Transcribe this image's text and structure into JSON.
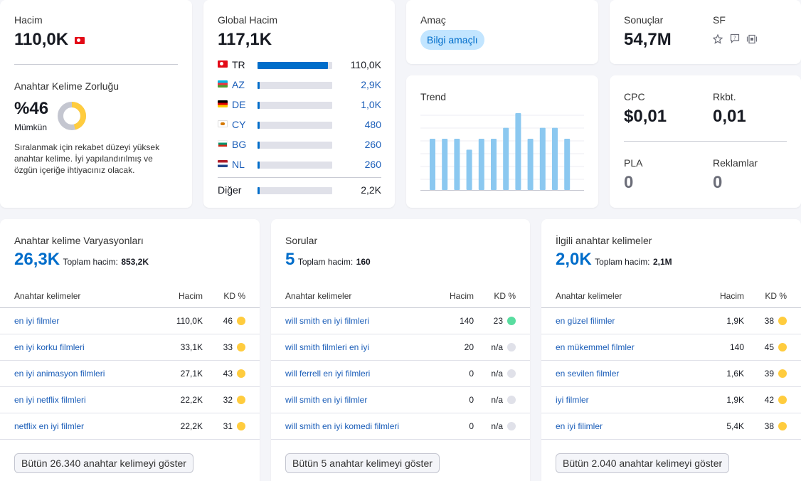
{
  "volume": {
    "label": "Hacim",
    "value": "110,0K",
    "difficulty_label": "Anahtar Kelime Zorluğu",
    "difficulty_value": "%46",
    "difficulty_text": "Mümkün",
    "difficulty_percent": 46,
    "difficulty_desc": "Sıralanmak için rekabet düzeyi yüksek anahtar kelime. İyi yapılandırılmış ve özgün içeriğe ihtiyacınız olacak.",
    "color": "#ffcc3e"
  },
  "global": {
    "label": "Global Hacim",
    "value": "117,1K",
    "countries": [
      {
        "code": "TR",
        "flag": "tr",
        "value": "110,0K",
        "share": 0.94
      },
      {
        "code": "AZ",
        "flag": "az",
        "value": "2,9K",
        "share": 0.025
      },
      {
        "code": "DE",
        "flag": "de",
        "value": "1,0K",
        "share": 0.02
      },
      {
        "code": "CY",
        "flag": "cy",
        "value": "480",
        "share": 0.02
      },
      {
        "code": "BG",
        "flag": "bg",
        "value": "260",
        "share": 0.02
      },
      {
        "code": "NL",
        "flag": "nl",
        "value": "260",
        "share": 0.02
      }
    ],
    "other": {
      "label": "Diğer",
      "value": "2,2K",
      "share": 0.025
    }
  },
  "intent": {
    "label": "Amaç",
    "badge": "Bilgi amaçlı"
  },
  "results": {
    "label": "Sonuçlar",
    "value": "54,7M",
    "sf_label": "SF"
  },
  "trend": {
    "label": "Trend",
    "values": [
      7,
      7,
      7,
      5.5,
      7,
      7,
      8.5,
      10.5,
      7,
      8.5,
      8.5,
      7
    ],
    "max": 10.5
  },
  "cpc": {
    "cpc_label": "CPC",
    "cpc_value": "$0,01",
    "com_label": "Rkbt.",
    "com_value": "0,01",
    "pla_label": "PLA",
    "pla_value": "0",
    "ads_label": "Reklamlar",
    "ads_value": "0"
  },
  "variations": {
    "title": "Anahtar kelime Varyasyonları",
    "count": "26,3K",
    "total_label": "Toplam hacim:",
    "total_value": "853,2K",
    "col_kw": "Anahtar kelimeler",
    "col_vol": "Hacim",
    "col_kd": "KD %",
    "rows": [
      {
        "kw": "en iyi filmler",
        "vol": "110,0K",
        "kd": "46",
        "color": "#ffcc3e"
      },
      {
        "kw": "en iyi korku filmleri",
        "vol": "33,1K",
        "kd": "33",
        "color": "#ffcc3e"
      },
      {
        "kw": "en iyi animasyon filmleri",
        "vol": "27,1K",
        "kd": "43",
        "color": "#ffcc3e"
      },
      {
        "kw": "en iyi netflix filmleri",
        "vol": "22,2K",
        "kd": "32",
        "color": "#ffcc3e"
      },
      {
        "kw": "netflix en iyi filmler",
        "vol": "22,2K",
        "kd": "31",
        "color": "#ffcc3e"
      }
    ],
    "button": "Bütün 26.340 anahtar kelimeyi göster"
  },
  "questions": {
    "title": "Sorular",
    "count": "5",
    "total_label": "Toplam hacim:",
    "total_value": "160",
    "col_kw": "Anahtar kelimeler",
    "col_vol": "Hacim",
    "col_kd": "KD %",
    "rows": [
      {
        "kw": "will smith en iyi filmleri",
        "vol": "140",
        "kd": "23",
        "color": "#59dda0"
      },
      {
        "kw": "will smith filmleri en iyi",
        "vol": "20",
        "kd": "n/a",
        "color": "#e0e1e9"
      },
      {
        "kw": "will ferrell en iyi filmleri",
        "vol": "0",
        "kd": "n/a",
        "color": "#e0e1e9"
      },
      {
        "kw": "will smith en iyi filmler",
        "vol": "0",
        "kd": "n/a",
        "color": "#e0e1e9"
      },
      {
        "kw": "will smith en iyi komedi filmleri",
        "vol": "0",
        "kd": "n/a",
        "color": "#e0e1e9"
      }
    ],
    "button": "Bütün 5 anahtar kelimeyi göster"
  },
  "related": {
    "title": "İlgili anahtar kelimeler",
    "count": "2,0K",
    "total_label": "Toplam hacim:",
    "total_value": "2,1M",
    "col_kw": "Anahtar kelimeler",
    "col_vol": "Hacim",
    "col_kd": "KD %",
    "rows": [
      {
        "kw": "en güzel filimler",
        "vol": "1,9K",
        "kd": "38",
        "color": "#ffcc3e"
      },
      {
        "kw": "en mükemmel filmler",
        "vol": "140",
        "kd": "45",
        "color": "#ffcc3e"
      },
      {
        "kw": "en sevilen filmler",
        "vol": "1,6K",
        "kd": "39",
        "color": "#ffcc3e"
      },
      {
        "kw": "iyi filmler",
        "vol": "1,9K",
        "kd": "42",
        "color": "#ffcc3e"
      },
      {
        "kw": "en iyi filimler",
        "vol": "5,4K",
        "kd": "38",
        "color": "#ffcc3e"
      }
    ],
    "button": "Bütün 2.040 anahtar kelimeyi göster"
  }
}
